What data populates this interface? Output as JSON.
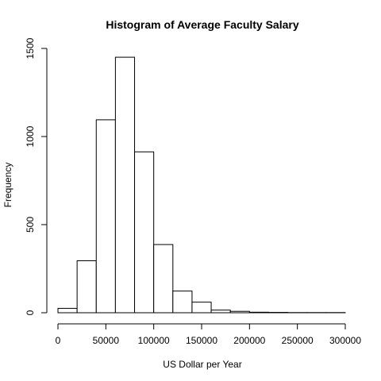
{
  "chart_data": {
    "type": "bar",
    "title": "Histogram of Average Faculty Salary",
    "xlabel": "US Dollar per Year",
    "ylabel": "Frequency",
    "bin_edges": [
      0,
      20000,
      40000,
      60000,
      80000,
      100000,
      120000,
      140000,
      160000,
      180000,
      200000,
      220000,
      240000,
      260000,
      280000,
      300000
    ],
    "values": [
      25,
      295,
      1095,
      1450,
      913,
      387,
      123,
      60,
      15,
      8,
      3,
      2,
      1,
      1,
      1
    ],
    "xlim": [
      0,
      300000
    ],
    "ylim": [
      0,
      1500
    ],
    "x_ticks": [
      0,
      50000,
      100000,
      150000,
      200000,
      250000,
      300000
    ],
    "y_ticks": [
      0,
      500,
      1000,
      1500
    ],
    "grid": false,
    "legend": "none",
    "colors": {
      "bar_fill": "#ffffff",
      "bar_stroke": "#000000",
      "axis": "#000000"
    }
  }
}
